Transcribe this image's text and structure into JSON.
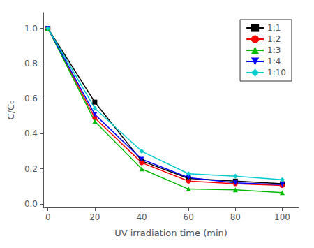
{
  "chart_data": {
    "type": "line",
    "x_label": "UV irradiation time (min)",
    "y_label": "C/C₀",
    "x": [
      0,
      20,
      40,
      60,
      80,
      100
    ],
    "series": [
      {
        "name": "1:1",
        "color": "#000000",
        "marker": "square",
        "values": [
          1.0,
          0.58,
          0.245,
          0.145,
          0.13,
          0.115
        ]
      },
      {
        "name": "1:2",
        "color": "#ff0000",
        "marker": "circle",
        "values": [
          1.0,
          0.49,
          0.235,
          0.13,
          0.115,
          0.105
        ]
      },
      {
        "name": "1:3",
        "color": "#00bb00",
        "marker": "triangle-up",
        "values": [
          1.0,
          0.47,
          0.2,
          0.085,
          0.08,
          0.065
        ]
      },
      {
        "name": "1:4",
        "color": "#0000ff",
        "marker": "triangle-down",
        "values": [
          1.0,
          0.51,
          0.255,
          0.15,
          0.12,
          0.11
        ]
      },
      {
        "name": "1:10",
        "color": "#00cccc",
        "marker": "diamond",
        "values": [
          1.0,
          0.545,
          0.3,
          0.172,
          0.158,
          0.138
        ]
      }
    ],
    "xlim": [
      -2,
      107
    ],
    "ylim": [
      -0.02,
      1.09
    ],
    "xticks": [
      0,
      20,
      40,
      60,
      80,
      100
    ],
    "yticks": [
      {
        "value": 0.0,
        "label": "0.0"
      },
      0.2,
      0.4,
      0.6,
      0.8,
      {
        "value": 1.0,
        "label": "1.0"
      }
    ],
    "grid": false,
    "legend": "upper right"
  }
}
